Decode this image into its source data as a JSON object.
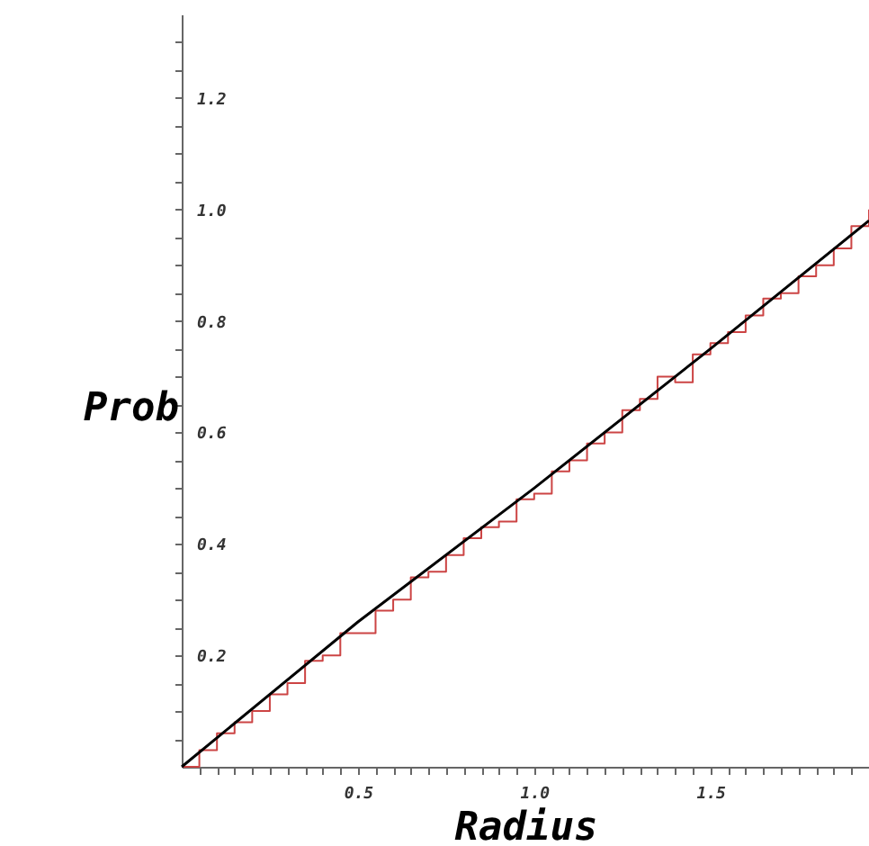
{
  "chart_data": {
    "type": "line",
    "xlabel": "Radius",
    "ylabel": "Prob",
    "xlim": [
      0,
      1.95
    ],
    "ylim": [
      0,
      1.35
    ],
    "xticks": [
      {
        "value": 0.05,
        "label": null
      },
      {
        "value": 0.1,
        "label": null
      },
      {
        "value": 0.15,
        "label": null
      },
      {
        "value": 0.2,
        "label": null
      },
      {
        "value": 0.25,
        "label": null
      },
      {
        "value": 0.3,
        "label": null
      },
      {
        "value": 0.35,
        "label": null
      },
      {
        "value": 0.4,
        "label": null
      },
      {
        "value": 0.45,
        "label": null
      },
      {
        "value": 0.5,
        "label": "0.5"
      },
      {
        "value": 0.55,
        "label": null
      },
      {
        "value": 0.6,
        "label": null
      },
      {
        "value": 0.65,
        "label": null
      },
      {
        "value": 0.7,
        "label": null
      },
      {
        "value": 0.75,
        "label": null
      },
      {
        "value": 0.8,
        "label": null
      },
      {
        "value": 0.85,
        "label": null
      },
      {
        "value": 0.9,
        "label": null
      },
      {
        "value": 0.95,
        "label": null
      },
      {
        "value": 1.0,
        "label": "1.0"
      },
      {
        "value": 1.05,
        "label": null
      },
      {
        "value": 1.1,
        "label": null
      },
      {
        "value": 1.15,
        "label": null
      },
      {
        "value": 1.2,
        "label": null
      },
      {
        "value": 1.25,
        "label": null
      },
      {
        "value": 1.3,
        "label": null
      },
      {
        "value": 1.35,
        "label": null
      },
      {
        "value": 1.4,
        "label": null
      },
      {
        "value": 1.45,
        "label": null
      },
      {
        "value": 1.5,
        "label": "1.5"
      },
      {
        "value": 1.55,
        "label": null
      },
      {
        "value": 1.6,
        "label": null
      },
      {
        "value": 1.65,
        "label": null
      },
      {
        "value": 1.7,
        "label": null
      },
      {
        "value": 1.75,
        "label": null
      },
      {
        "value": 1.8,
        "label": null
      },
      {
        "value": 1.85,
        "label": null
      },
      {
        "value": 1.9,
        "label": null
      }
    ],
    "yticks": [
      {
        "value": 0.05,
        "label": null
      },
      {
        "value": 0.1,
        "label": null
      },
      {
        "value": 0.15,
        "label": null
      },
      {
        "value": 0.2,
        "label": "0.2"
      },
      {
        "value": 0.25,
        "label": null
      },
      {
        "value": 0.3,
        "label": null
      },
      {
        "value": 0.35,
        "label": null
      },
      {
        "value": 0.4,
        "label": "0.4"
      },
      {
        "value": 0.45,
        "label": null
      },
      {
        "value": 0.5,
        "label": null
      },
      {
        "value": 0.55,
        "label": null
      },
      {
        "value": 0.6,
        "label": "0.6"
      },
      {
        "value": 0.65,
        "label": null
      },
      {
        "value": 0.7,
        "label": null
      },
      {
        "value": 0.75,
        "label": null
      },
      {
        "value": 0.8,
        "label": "0.8"
      },
      {
        "value": 0.85,
        "label": null
      },
      {
        "value": 0.9,
        "label": null
      },
      {
        "value": 0.95,
        "label": null
      },
      {
        "value": 1.0,
        "label": "1.0"
      },
      {
        "value": 1.05,
        "label": null
      },
      {
        "value": 1.1,
        "label": null
      },
      {
        "value": 1.15,
        "label": null
      },
      {
        "value": 1.2,
        "label": "1.2"
      },
      {
        "value": 1.25,
        "label": null
      },
      {
        "value": 1.3,
        "label": null
      }
    ],
    "grid": false,
    "series": [
      {
        "type": "step",
        "color": "#cc4444",
        "x": [
          0,
          0.05,
          0.1,
          0.15,
          0.2,
          0.25,
          0.3,
          0.35,
          0.4,
          0.45,
          0.5,
          0.55,
          0.6,
          0.65,
          0.7,
          0.75,
          0.8,
          0.85,
          0.9,
          0.95,
          1.0,
          1.05,
          1.1,
          1.15,
          1.2,
          1.25,
          1.3,
          1.35,
          1.4,
          1.45,
          1.5,
          1.55,
          1.6,
          1.65,
          1.7,
          1.75,
          1.8,
          1.85,
          1.9,
          1.95
        ],
        "values": [
          0.0,
          0.03,
          0.06,
          0.08,
          0.1,
          0.13,
          0.15,
          0.19,
          0.2,
          0.24,
          0.24,
          0.28,
          0.3,
          0.34,
          0.35,
          0.38,
          0.41,
          0.43,
          0.44,
          0.48,
          0.49,
          0.53,
          0.55,
          0.58,
          0.6,
          0.64,
          0.66,
          0.7,
          0.69,
          0.74,
          0.76,
          0.78,
          0.81,
          0.84,
          0.85,
          0.88,
          0.9,
          0.93,
          0.97,
          1.0
        ]
      },
      {
        "type": "line",
        "color": "#000000",
        "x": [
          0,
          0.5,
          1.0,
          1.5,
          1.95
        ],
        "values": [
          0,
          0.26,
          0.5,
          0.75,
          0.98
        ]
      }
    ]
  }
}
